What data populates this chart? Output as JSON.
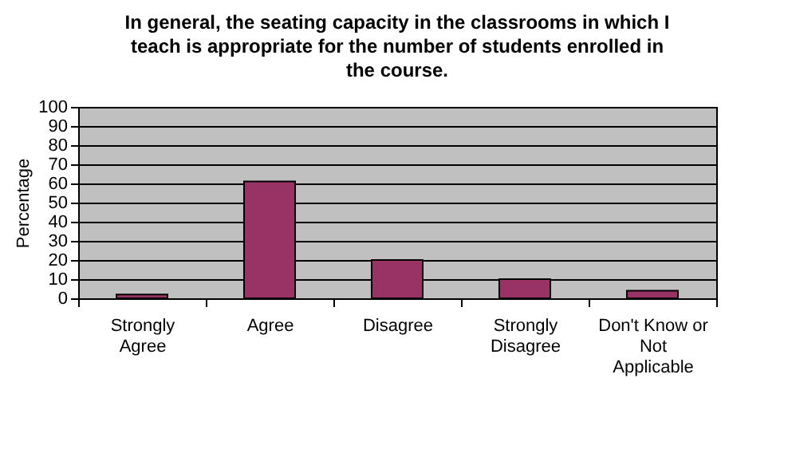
{
  "chart_data": {
    "type": "bar",
    "title": "In general, the seating capacity in the classrooms in which I teach is appropriate for the number of students enrolled in the course.",
    "ylabel": "Percentage",
    "categories": [
      "Strongly Agree",
      "Agree",
      "Disagree",
      "Strongly Disagree",
      "Don't Know or Not Applicable"
    ],
    "values": [
      2,
      61,
      20,
      10,
      4
    ],
    "color": "#993366",
    "ylim": [
      0,
      100
    ],
    "yticks": [
      0,
      10,
      20,
      30,
      40,
      50,
      60,
      70,
      80,
      90,
      100
    ],
    "grid": "y"
  }
}
